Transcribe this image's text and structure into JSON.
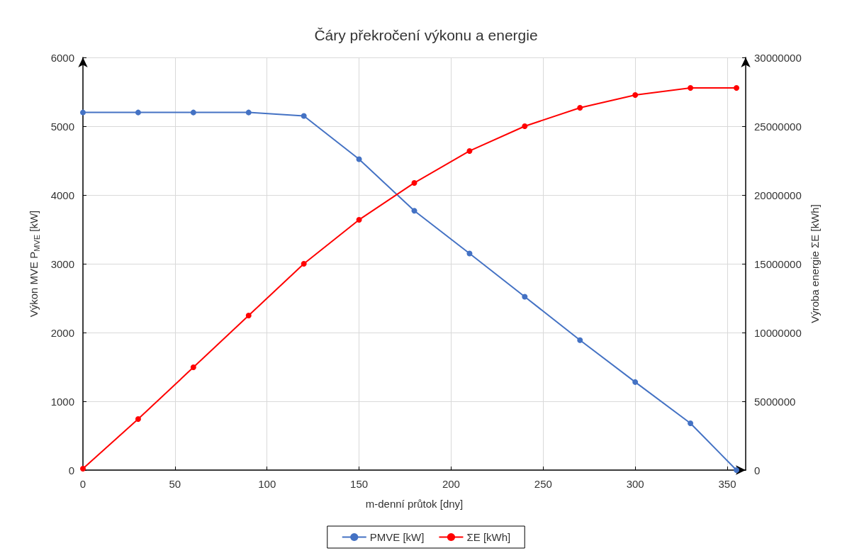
{
  "chart_data": {
    "type": "line",
    "title": "Čáry překročení výkonu a energie",
    "xlabel": "m-denní průtok [dny]",
    "ylabel": "Výkon MVE P$_{MVE}$ [kW]",
    "y2label": "Výroba energie ΣE [kWh]",
    "x": [
      0,
      30,
      60,
      90,
      120,
      150,
      180,
      210,
      240,
      270,
      300,
      330,
      355
    ],
    "series": [
      {
        "name": "PMVE [kW]",
        "color": "#4472c4",
        "values": [
          5200,
          5200,
          5200,
          5200,
          5150,
          4520,
          3770,
          3150,
          2520,
          1890,
          1280,
          680,
          0
        ]
      },
      {
        "name": "ΣE [kWh]",
        "color": "#ff0000",
        "axis": "y2",
        "values": [
          100000,
          3710000,
          7470000,
          11240000,
          15000000,
          18200000,
          20880000,
          23200000,
          25000000,
          26340000,
          27270000,
          27780000,
          27780000
        ]
      }
    ],
    "xlim": [
      0,
      360
    ],
    "xticks": [
      0,
      50,
      100,
      150,
      200,
      250,
      300,
      350
    ],
    "ylim": [
      0,
      6000
    ],
    "yticks": [
      0,
      1000,
      2000,
      3000,
      4000,
      5000,
      6000
    ],
    "y2lim": [
      0,
      30000000
    ],
    "y2ticks": [
      0,
      5000000,
      10000000,
      15000000,
      20000000,
      25000000,
      30000000
    ],
    "grid": true,
    "legend": "bottom",
    "marker": "circle",
    "line_style": "solid"
  }
}
